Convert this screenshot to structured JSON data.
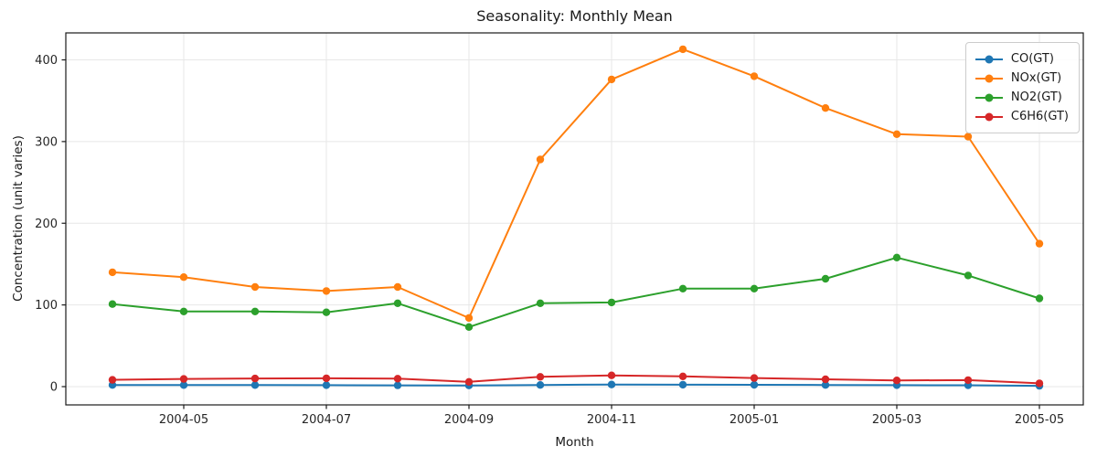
{
  "chart_data": {
    "type": "line",
    "title": "Seasonality: Monthly Mean",
    "xlabel": "Month",
    "ylabel": "Concentration (unit varies)",
    "x": [
      "2004-04",
      "2004-05",
      "2004-06",
      "2004-07",
      "2004-08",
      "2004-09",
      "2004-10",
      "2004-11",
      "2004-12",
      "2005-01",
      "2005-02",
      "2005-03",
      "2005-04",
      "2005-05"
    ],
    "xtick_labels": [
      "2004-05",
      "2004-07",
      "2004-09",
      "2004-11",
      "2005-01",
      "2005-03",
      "2005-05"
    ],
    "yticks": [
      0,
      100,
      200,
      300,
      400
    ],
    "ytick_labels": [
      "0",
      "100",
      "200",
      "300",
      "400"
    ],
    "ylim": [
      -22,
      433
    ],
    "grid": true,
    "legend_position": "upper right",
    "marker": "o",
    "series": [
      {
        "name": "CO(GT)",
        "color": "#1f77b4",
        "values": [
          2.0,
          1.9,
          1.9,
          1.8,
          1.6,
          1.4,
          2.0,
          2.6,
          2.4,
          2.2,
          2.0,
          1.8,
          1.7,
          1.0
        ]
      },
      {
        "name": "NOx(GT)",
        "color": "#ff7f0e",
        "values": [
          140,
          134,
          122,
          117,
          122,
          84,
          278,
          376,
          413,
          380,
          341,
          309,
          306,
          175
        ]
      },
      {
        "name": "NO2(GT)",
        "color": "#2ca02c",
        "values": [
          101,
          92,
          92,
          91,
          102,
          73,
          102,
          103,
          120,
          120,
          132,
          158,
          136,
          108
        ]
      },
      {
        "name": "C6H6(GT)",
        "color": "#d62728",
        "values": [
          8.3,
          9.4,
          10.0,
          10.2,
          9.7,
          5.8,
          12.0,
          13.8,
          12.5,
          10.5,
          9.0,
          7.6,
          8.0,
          4.0
        ]
      }
    ],
    "style": {
      "grid_color": "#e7e7e7",
      "spine_color": "#1a1a1a",
      "tick_text_color": "#262626"
    }
  }
}
